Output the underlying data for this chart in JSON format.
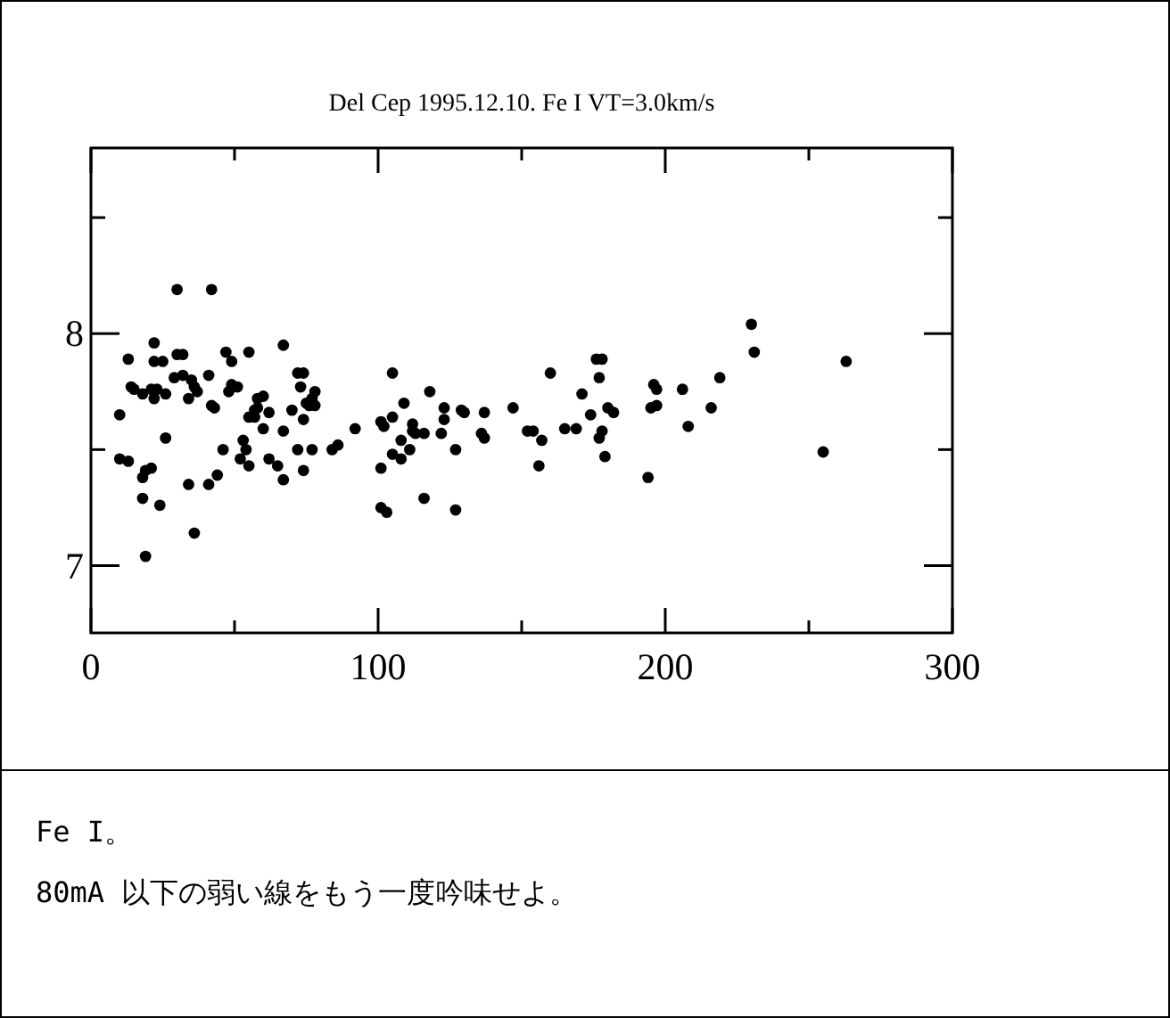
{
  "chart_data": {
    "type": "scatter",
    "title": "Del Cep  1995.12.10. Fe I  VT=3.0km/s",
    "xlim": [
      0,
      300
    ],
    "ylim": [
      6.71,
      8.8
    ],
    "xticks": [
      0,
      {
        "value": 50,
        "label": null
      },
      100,
      {
        "value": 150,
        "label": null
      },
      200,
      {
        "value": 250,
        "label": null
      },
      300
    ],
    "yticks": [
      7,
      {
        "value": 7.5,
        "label": null
      },
      8,
      {
        "value": 8.5,
        "label": null
      }
    ],
    "grid": false,
    "marker": "circle",
    "annotations": [
      "Fe I。",
      "80mA 以下の弱い線をもう一度吟味せよ。"
    ],
    "series": [
      {
        "color": "#000000",
        "x": [
          30,
          42,
          22,
          13,
          22,
          25,
          30,
          32,
          47,
          49,
          55,
          67,
          14,
          15,
          18,
          21,
          23,
          22,
          26,
          29,
          32,
          35,
          36,
          34,
          37,
          41,
          42,
          43,
          48,
          49,
          51,
          58,
          60,
          57,
          58,
          62,
          55,
          57,
          60,
          67,
          72,
          74,
          73,
          78,
          77,
          76,
          78,
          75,
          70,
          74,
          10,
          26,
          10,
          13,
          19,
          18,
          21,
          18,
          24,
          34,
          41,
          44,
          46,
          53,
          54,
          52,
          55,
          62,
          65,
          67,
          72,
          77,
          74,
          36,
          19,
          84,
          86,
          92,
          101,
          102,
          105,
          105,
          109,
          108,
          105,
          108,
          101,
          101,
          103,
          112,
          112,
          113,
          116,
          111,
          118,
          123,
          123,
          122,
          129,
          130,
          127,
          137,
          136,
          137,
          116,
          127,
          147,
          152,
          154,
          157,
          156,
          160,
          165,
          169,
          171,
          174,
          176,
          178,
          177,
          180,
          182,
          178,
          177,
          179,
          194,
          196,
          197,
          195,
          197,
          206,
          208,
          216,
          219,
          230,
          231,
          263,
          255
        ],
        "values": [
          8.19,
          8.19,
          7.96,
          7.89,
          7.88,
          7.88,
          7.91,
          7.91,
          7.92,
          7.88,
          7.92,
          7.95,
          7.77,
          7.76,
          7.74,
          7.76,
          7.76,
          7.72,
          7.74,
          7.81,
          7.82,
          7.8,
          7.77,
          7.72,
          7.75,
          7.82,
          7.69,
          7.68,
          7.75,
          7.78,
          7.77,
          7.72,
          7.73,
          7.67,
          7.68,
          7.66,
          7.64,
          7.64,
          7.59,
          7.58,
          7.83,
          7.83,
          7.77,
          7.75,
          7.72,
          7.69,
          7.69,
          7.7,
          7.67,
          7.63,
          7.65,
          7.55,
          7.46,
          7.45,
          7.41,
          7.38,
          7.42,
          7.29,
          7.26,
          7.35,
          7.35,
          7.39,
          7.5,
          7.54,
          7.5,
          7.46,
          7.43,
          7.46,
          7.43,
          7.37,
          7.5,
          7.5,
          7.41,
          7.14,
          7.04,
          7.5,
          7.52,
          7.59,
          7.62,
          7.6,
          7.83,
          7.64,
          7.7,
          7.54,
          7.48,
          7.46,
          7.42,
          7.25,
          7.23,
          7.61,
          7.58,
          7.57,
          7.57,
          7.5,
          7.75,
          7.68,
          7.63,
          7.57,
          7.67,
          7.66,
          7.5,
          7.66,
          7.57,
          7.55,
          7.29,
          7.24,
          7.68,
          7.58,
          7.58,
          7.54,
          7.43,
          7.83,
          7.59,
          7.59,
          7.74,
          7.65,
          7.89,
          7.89,
          7.81,
          7.68,
          7.66,
          7.58,
          7.55,
          7.47,
          7.38,
          7.78,
          7.76,
          7.68,
          7.69,
          7.76,
          7.6,
          7.68,
          7.81,
          8.04,
          7.92,
          7.88,
          7.49
        ]
      }
    ]
  }
}
